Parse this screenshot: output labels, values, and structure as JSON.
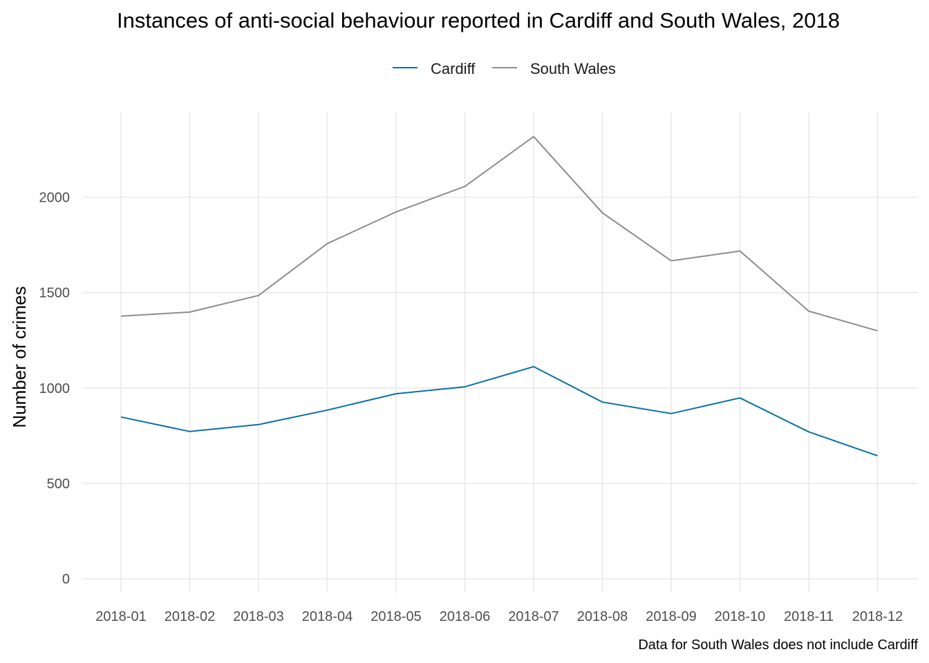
{
  "chart_data": {
    "type": "line",
    "title": "Instances of anti-social behaviour reported in Cardiff and South Wales, 2018",
    "xlabel": "",
    "ylabel": "Number of crimes",
    "caption": "Data for South Wales does not include Cardiff",
    "categories": [
      "2018-01",
      "2018-02",
      "2018-03",
      "2018-04",
      "2018-05",
      "2018-06",
      "2018-07",
      "2018-08",
      "2018-09",
      "2018-10",
      "2018-11",
      "2018-12"
    ],
    "yticks": [
      0,
      500,
      1000,
      1500,
      2000
    ],
    "ylim": [
      0,
      2320
    ],
    "grid": true,
    "legend_position": "top",
    "series": [
      {
        "name": "Cardiff",
        "color": "#0a6fa6",
        "values": [
          848,
          772,
          808,
          884,
          970,
          1006,
          1112,
          926,
          866,
          948,
          770,
          645
        ]
      },
      {
        "name": "South Wales",
        "color": "#8c8c8c",
        "values": [
          1377,
          1398,
          1485,
          1757,
          1923,
          2057,
          2318,
          1918,
          1667,
          1718,
          1403,
          1300
        ]
      }
    ]
  }
}
